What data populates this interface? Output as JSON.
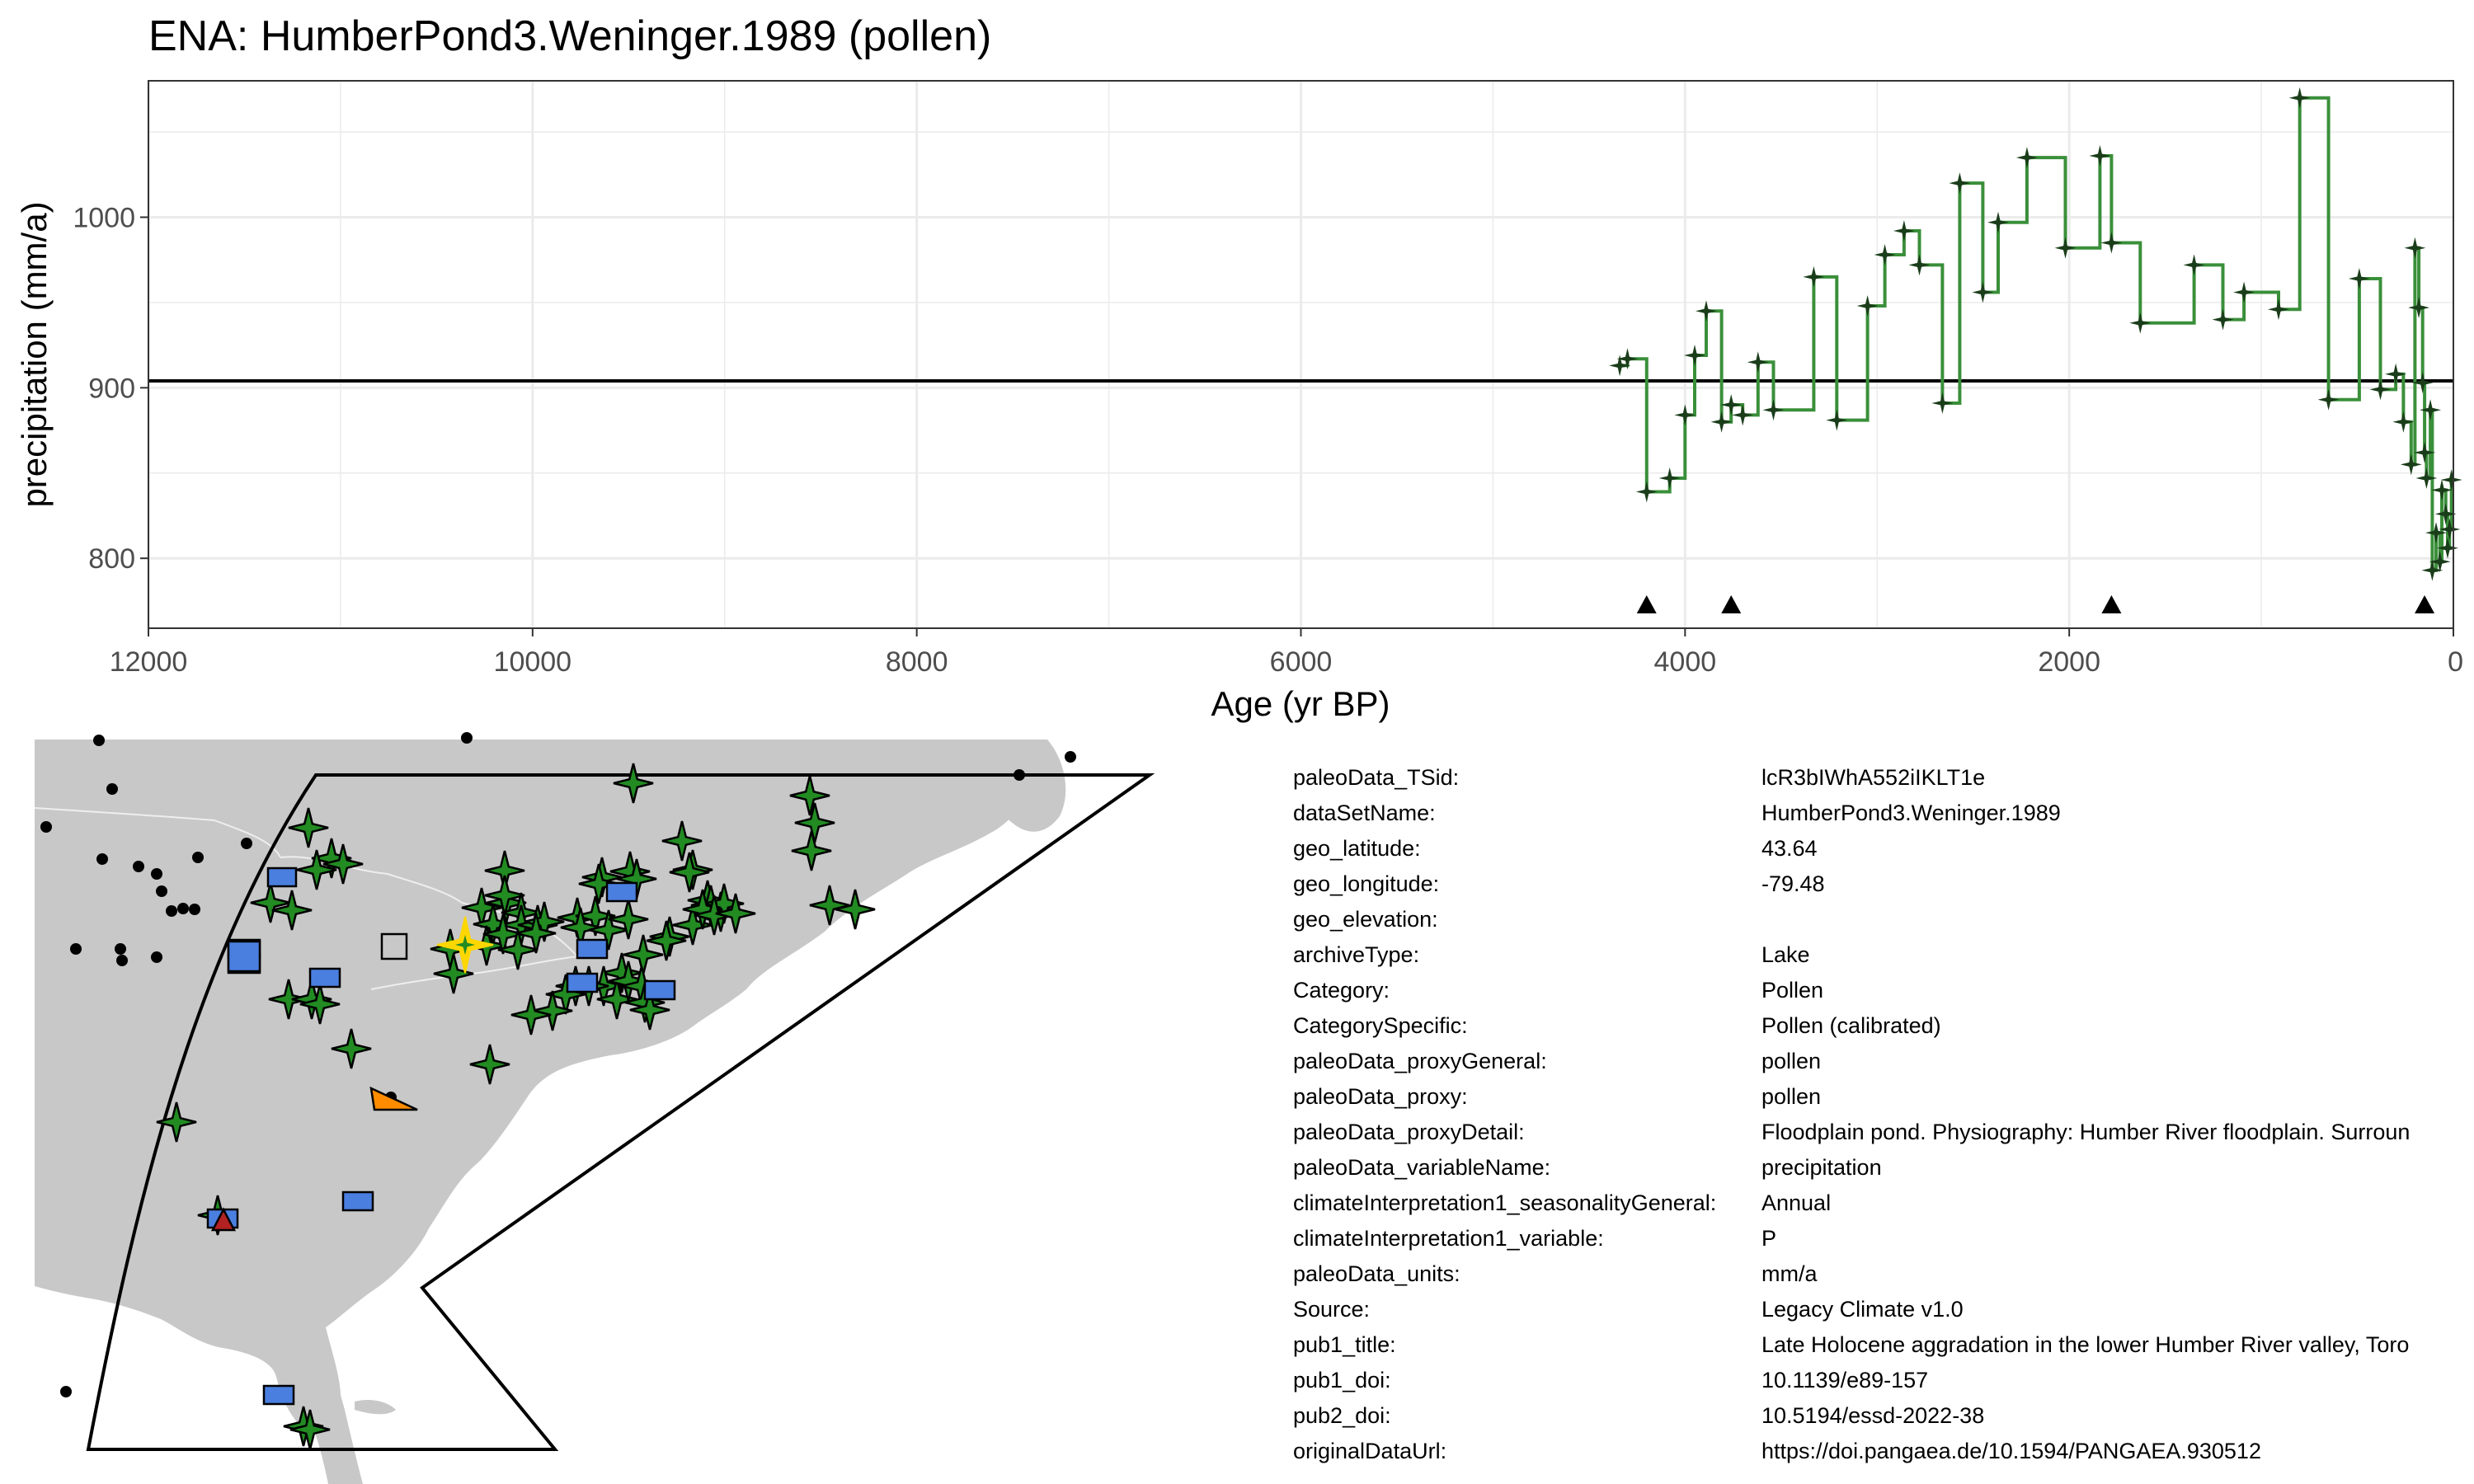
{
  "title": "ENA: HumberPond3.Weninger.1989 (pollen)",
  "chart_data": {
    "type": "line",
    "step": true,
    "title": "ENA: HumberPond3.Weninger.1989 (pollen)",
    "xlabel": "Age (yr BP)",
    "ylabel": "precipitation (mm/a)",
    "xlim": [
      12000,
      0
    ],
    "ylim": [
      759,
      1080
    ],
    "x_reversed": true,
    "x_ticks": [
      12000,
      10000,
      8000,
      6000,
      4000,
      2000,
      0
    ],
    "y_ticks": [
      800,
      900,
      1000
    ],
    "reference_line": 904,
    "line_color": "#3a8f3a",
    "marker_color": "#1a3d1a",
    "grid": true,
    "series": [
      {
        "name": "precipitation",
        "x": [
          4340,
          4300,
          4200,
          4080,
          4000,
          3950,
          3890,
          3810,
          3760,
          3700,
          3620,
          3540,
          3330,
          3210,
          3050,
          2960,
          2860,
          2780,
          2660,
          2570,
          2450,
          2370,
          2220,
          2020,
          1840,
          1780,
          1630,
          1350,
          1200,
          1090,
          910,
          800,
          650,
          490,
          380,
          300,
          260,
          220,
          200,
          180,
          160,
          150,
          140,
          120,
          110,
          90,
          70,
          60,
          40,
          30,
          20,
          10
        ],
        "values": [
          913,
          917,
          839,
          847,
          884,
          919,
          945,
          880,
          890,
          884,
          915,
          887,
          965,
          881,
          948,
          978,
          992,
          972,
          891,
          1020,
          956,
          997,
          1035,
          982,
          1036,
          985,
          938,
          972,
          940,
          956,
          946,
          1070,
          893,
          964,
          899,
          908,
          880,
          855,
          982,
          947,
          903,
          862,
          847,
          887,
          793,
          815,
          798,
          840,
          826,
          806,
          817,
          846
        ]
      }
    ],
    "event_markers_x": [
      4200,
      3760,
      1780,
      150
    ]
  },
  "metadata": [
    {
      "key": "paleoData_TSid:",
      "value": "lcR3bIWhA552iIKLT1e"
    },
    {
      "key": "dataSetName:",
      "value": "HumberPond3.Weninger.1989"
    },
    {
      "key": "geo_latitude:",
      "value": "43.64"
    },
    {
      "key": "geo_longitude:",
      "value": "-79.48"
    },
    {
      "key": "geo_elevation:",
      "value": ""
    },
    {
      "key": "archiveType:",
      "value": "Lake"
    },
    {
      "key": "Category:",
      "value": "Pollen"
    },
    {
      "key": "CategorySpecific:",
      "value": "Pollen (calibrated)"
    },
    {
      "key": "paleoData_proxyGeneral:",
      "value": "pollen"
    },
    {
      "key": "paleoData_proxy:",
      "value": "pollen"
    },
    {
      "key": "paleoData_proxyDetail:",
      "value": "Floodplain pond. Physiography: Humber River floodplain. Surroun"
    },
    {
      "key": "paleoData_variableName:",
      "value": "precipitation"
    },
    {
      "key": "climateInterpretation1_seasonalityGeneral:",
      "value": "Annual"
    },
    {
      "key": "climateInterpretation1_variable:",
      "value": "P"
    },
    {
      "key": "paleoData_units:",
      "value": "mm/a"
    },
    {
      "key": "Source:",
      "value": "Legacy Climate v1.0"
    },
    {
      "key": "pub1_title:",
      "value": "Late Holocene aggradation in the lower Humber River valley, Toro"
    },
    {
      "key": "pub1_doi:",
      "value": "10.1139/e89-157"
    },
    {
      "key": "pub2_doi:",
      "value": "10.5194/essd-2022-38"
    },
    {
      "key": "originalDataUrl:",
      "value": "https://doi.pangaea.de/10.1594/PANGAEA.930512"
    }
  ],
  "map": {
    "colors": {
      "land": "#c8c8c8",
      "border": "#eeeeee",
      "pollen_marker": "#228b22",
      "highlight_marker": "#ffd700",
      "lake_marker": "#4a7fe0",
      "grey_marker": "#c8c8c8",
      "orange_marker": "#ff8c00",
      "red_marker": "#b22222",
      "outside_dot": "#000000"
    }
  }
}
